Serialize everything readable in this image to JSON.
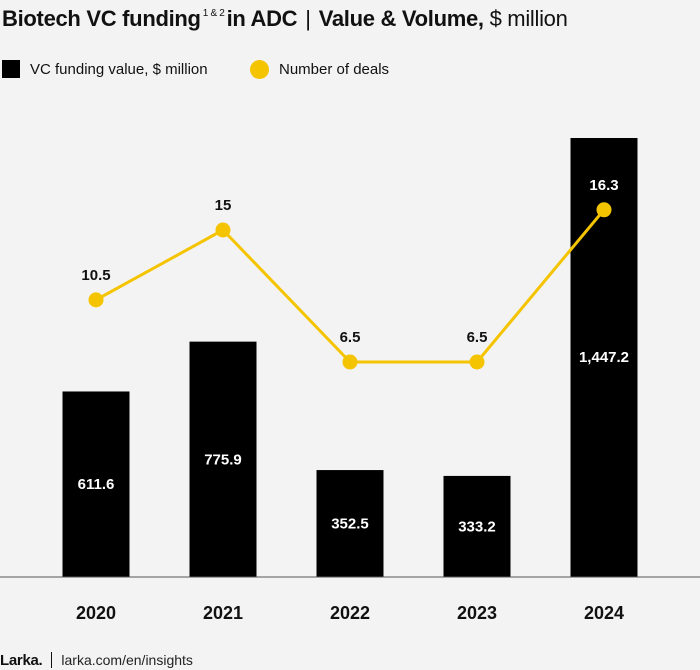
{
  "title": {
    "main": "Biotech VC funding",
    "superscript": "1 & 2",
    "main_rest": "in ADC",
    "separator": "|",
    "subtitle": "Value & Volume,",
    "unit": "$ million"
  },
  "legend": {
    "bar_label": "VC funding value, $ million",
    "line_label": "Number of deals"
  },
  "footer": {
    "brand": "Larka.",
    "url": "larka.com/en/insights"
  },
  "colors": {
    "bar": "#000000",
    "line": "#f5c400",
    "background": "#f3f3f3"
  },
  "chart_data": {
    "type": "bar",
    "categories": [
      "2020",
      "2021",
      "2022",
      "2023",
      "2024"
    ],
    "series": [
      {
        "name": "VC funding value, $ million",
        "type": "bar",
        "values": [
          611.6,
          775.9,
          352.5,
          333.2,
          1447.2
        ],
        "labels": [
          "611.6",
          "775.9",
          "352.5",
          "333.2",
          "1,447.2"
        ]
      },
      {
        "name": "Number of deals",
        "type": "line",
        "values": [
          10.5,
          15,
          6.5,
          6.5,
          16.3
        ],
        "labels": [
          "10.5",
          "15",
          "6.5",
          "6.5",
          "16.3"
        ]
      }
    ],
    "ylim": [
      0,
      1600
    ],
    "y2lim": [
      0,
      33
    ],
    "grid": false,
    "legend_position": "top-left"
  }
}
